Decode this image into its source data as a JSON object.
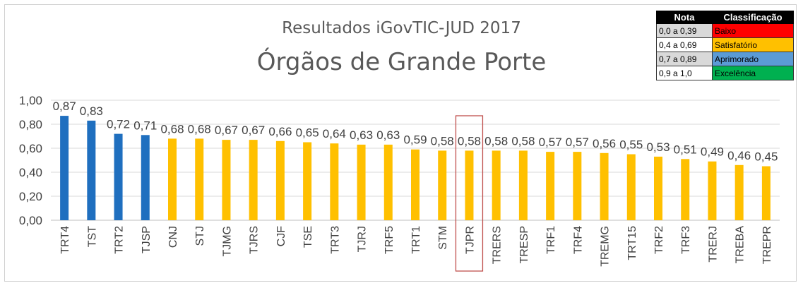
{
  "chart_data": {
    "type": "bar",
    "title": "Resultados iGovTIC-JUD 2017",
    "subtitle": "Órgãos de Grande Porte",
    "xlabel": "",
    "ylabel": "",
    "ylim": [
      0,
      1
    ],
    "yticks": [
      "0,00",
      "0,20",
      "0,40",
      "0,60",
      "0,80",
      "1,00"
    ],
    "grid": true,
    "highlighted_category": "TJPR",
    "categories": [
      "TRT4",
      "TST",
      "TRT2",
      "TJSP",
      "CNJ",
      "STJ",
      "TJMG",
      "TJRS",
      "CJF",
      "TSE",
      "TRT3",
      "TJRJ",
      "TRF5",
      "TRT1",
      "STM",
      "TJPR",
      "TRERS",
      "TRESP",
      "TRF1",
      "TRF4",
      "TREMG",
      "TRT15",
      "TRF2",
      "TRF3",
      "TRERJ",
      "TREBA",
      "TREPR"
    ],
    "values": [
      0.87,
      0.83,
      0.72,
      0.71,
      0.68,
      0.68,
      0.67,
      0.67,
      0.66,
      0.65,
      0.64,
      0.63,
      0.63,
      0.59,
      0.58,
      0.58,
      0.58,
      0.58,
      0.57,
      0.57,
      0.56,
      0.55,
      0.53,
      0.51,
      0.49,
      0.46,
      0.45
    ],
    "value_labels": [
      "0,87",
      "0,83",
      "0,72",
      "0,71",
      "0,68",
      "0,68",
      "0,67",
      "0,67",
      "0,66",
      "0,65",
      "0,64",
      "0,63",
      "0,63",
      "0,59",
      "0,58",
      "0,58",
      "0,58",
      "0,58",
      "0,57",
      "0,57",
      "0,56",
      "0,55",
      "0,53",
      "0,51",
      "0,49",
      "0,46",
      "0,45"
    ],
    "bar_colors": [
      "#1f6fbf",
      "#1f6fbf",
      "#1f6fbf",
      "#1f6fbf",
      "#ffc000",
      "#ffc000",
      "#ffc000",
      "#ffc000",
      "#ffc000",
      "#ffc000",
      "#ffc000",
      "#ffc000",
      "#ffc000",
      "#ffc000",
      "#ffc000",
      "#ffc000",
      "#ffc000",
      "#ffc000",
      "#ffc000",
      "#ffc000",
      "#ffc000",
      "#ffc000",
      "#ffc000",
      "#ffc000",
      "#ffc000",
      "#ffc000",
      "#ffc000"
    ]
  },
  "legend": {
    "header_nota": "Nota",
    "header_classificacao": "Classificação",
    "rows": [
      {
        "range": "0,0 a 0,39",
        "label": "Baixo",
        "color": "#ff0000"
      },
      {
        "range": "0,4 a 0,69",
        "label": "Satisfatório",
        "color": "#ffc000"
      },
      {
        "range": "0,7 a 0,89",
        "label": "Aprimorado",
        "color": "#5b9bd5"
      },
      {
        "range": "0,9 a 1,0",
        "label": "Excelência",
        "color": "#00b050"
      }
    ]
  },
  "colors": {
    "highlight_box": "#c0504d",
    "grid": "#d9d9d9",
    "text": "#404040"
  }
}
